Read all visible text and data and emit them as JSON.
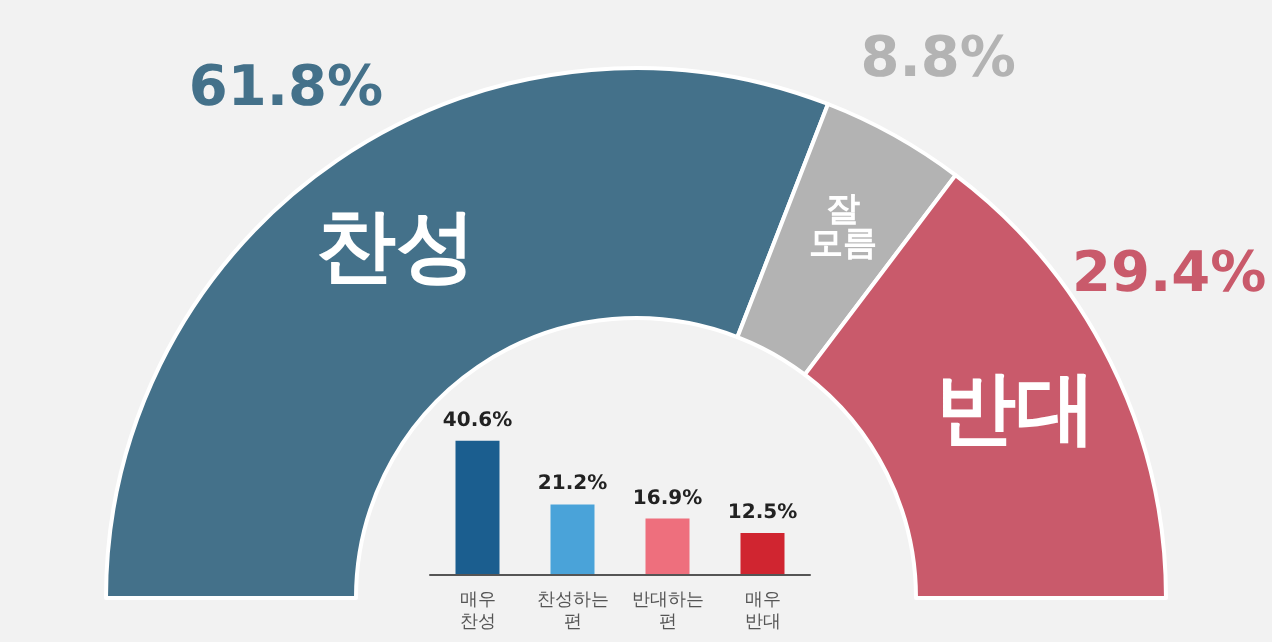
{
  "chart_data": [
    {
      "type": "donut",
      "categories": [
        "찬성",
        "잘 모름",
        "반대"
      ],
      "values": [
        61.8,
        8.8,
        29.4
      ],
      "value_labels": [
        "61.8%",
        "8.8%",
        "29.4%"
      ],
      "colors": [
        "#44718a",
        "#b3b3b3",
        "#c95a6b"
      ]
    },
    {
      "type": "bar",
      "categories": [
        "매우 찬성",
        "찬성하는 편",
        "반대하는 편",
        "매우 반대"
      ],
      "values": [
        40.6,
        21.2,
        16.9,
        12.5
      ],
      "value_labels": [
        "40.6%",
        "21.2%",
        "16.9%",
        "12.5%"
      ],
      "colors": [
        "#1b5e8f",
        "#4aa3d9",
        "#ee6f7d",
        "#d02530"
      ]
    }
  ]
}
